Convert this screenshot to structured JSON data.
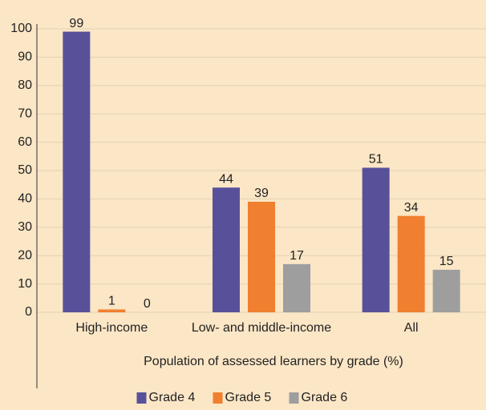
{
  "chart_data": {
    "type": "bar",
    "x_label": "Population of assessed learners by grade (%)",
    "categories": [
      "High-income",
      "Low- and middle-income",
      "All"
    ],
    "series": [
      {
        "name": "Grade 4",
        "color": "#58519a",
        "values": [
          99,
          44,
          51
        ]
      },
      {
        "name": "Grade 5",
        "color": "#f07f2f",
        "values": [
          1,
          39,
          34
        ]
      },
      {
        "name": "Grade 6",
        "color": "#9e9e9e",
        "values": [
          0,
          17,
          15
        ]
      }
    ],
    "ylim": [
      0,
      100
    ],
    "yticks": [
      0,
      10,
      20,
      30,
      40,
      50,
      60,
      70,
      80,
      90,
      100
    ],
    "grid": true,
    "legend": "bottom"
  }
}
